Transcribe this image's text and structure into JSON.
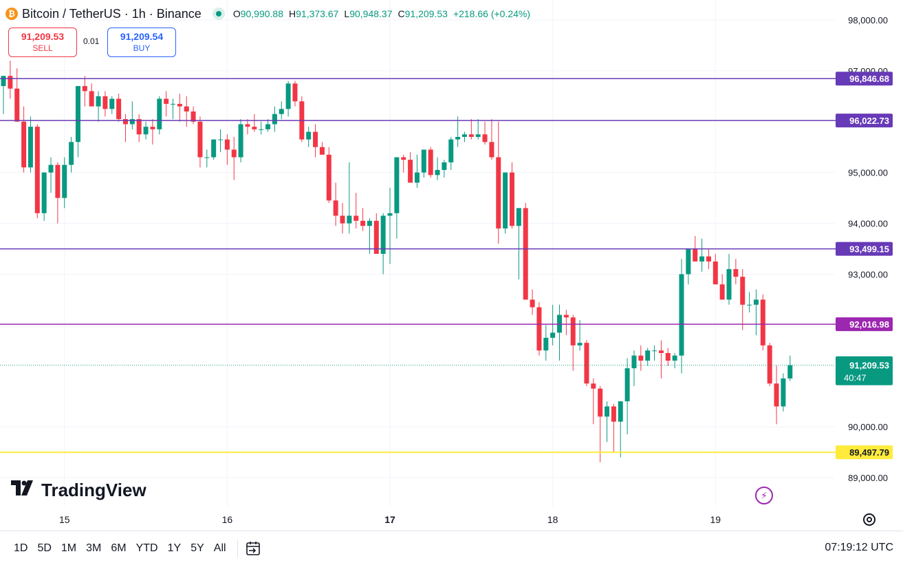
{
  "header": {
    "symbol_title": "Bitcoin / TetherUS · 1h · Binance",
    "ohlc": [
      {
        "key": "O",
        "value": "90,990.88"
      },
      {
        "key": "H",
        "value": "91,373.67"
      },
      {
        "key": "L",
        "value": "90,948.37"
      },
      {
        "key": "C",
        "value": "91,209.53"
      }
    ],
    "change": "+218.66 (+0.24%)",
    "status_color": "#089981"
  },
  "trade": {
    "sell_price": "91,209.53",
    "sell_label": "SELL",
    "spread": "0.01",
    "buy_price": "91,209.54",
    "buy_label": "BUY"
  },
  "logo_text": "TradingView",
  "bottom_bar": {
    "ranges": [
      "1D",
      "5D",
      "1M",
      "3M",
      "6M",
      "YTD",
      "1Y",
      "5Y",
      "All"
    ],
    "clock": "07:19:12 UTC"
  },
  "chart_data": {
    "type": "candlestick",
    "ylim": [
      88500,
      98200
    ],
    "y_ticks": [
      {
        "value": 98000,
        "label": "98,000.00"
      },
      {
        "value": 97000,
        "label": "97,000.00"
      },
      {
        "value": 95000,
        "label": "95,000.00"
      },
      {
        "value": 94000,
        "label": "94,000.00"
      },
      {
        "value": 93000,
        "label": "93,000.00"
      },
      {
        "value": 90000,
        "label": "90,000.00"
      },
      {
        "value": 89000,
        "label": "89,000.00"
      }
    ],
    "x_ticks": [
      {
        "index": 9,
        "label": "15",
        "bold": false
      },
      {
        "index": 33,
        "label": "16",
        "bold": false
      },
      {
        "index": 57,
        "label": "17",
        "bold": true
      },
      {
        "index": 81,
        "label": "18",
        "bold": false
      },
      {
        "index": 105,
        "label": "19",
        "bold": false
      }
    ],
    "horizontal_lines": [
      {
        "value": 96846.68,
        "label": "96,846.68",
        "color": "#673ab7"
      },
      {
        "value": 96022.73,
        "label": "96,022.73",
        "color": "#673ab7"
      },
      {
        "value": 93499.15,
        "label": "93,499.15",
        "color": "#673ab7"
      },
      {
        "value": 92016.98,
        "label": "92,016.98",
        "color": "#9c27b0"
      },
      {
        "value": 89497.79,
        "label": "89,497.79",
        "color": "#ffeb3b"
      }
    ],
    "last_price": {
      "value": 91209.53,
      "label": "91,209.53",
      "countdown": "40:47",
      "color": "#089981"
    },
    "colors": {
      "up": "#089981",
      "down": "#f23645"
    },
    "candles": [
      [
        96700,
        96900,
        96150,
        96900
      ],
      [
        96900,
        97200,
        96450,
        96650
      ],
      [
        96650,
        97050,
        96000,
        96000
      ],
      [
        96000,
        96300,
        95000,
        95100
      ],
      [
        95100,
        96100,
        95000,
        95900
      ],
      [
        95900,
        95950,
        94100,
        94200
      ],
      [
        94200,
        95000,
        94050,
        95000
      ],
      [
        95000,
        95300,
        94600,
        95150
      ],
      [
        95150,
        95200,
        94000,
        94500
      ],
      [
        94500,
        95300,
        94300,
        95150
      ],
      [
        95150,
        95700,
        95000,
        95600
      ],
      [
        95600,
        96700,
        95300,
        96700
      ],
      [
        96700,
        96900,
        96300,
        96600
      ],
      [
        96600,
        96750,
        96300,
        96300
      ],
      [
        96300,
        96600,
        96000,
        96500
      ],
      [
        96500,
        96600,
        96100,
        96250
      ],
      [
        96250,
        96500,
        96150,
        96450
      ],
      [
        96450,
        96550,
        96000,
        96050
      ],
      [
        96050,
        96150,
        95600,
        95950
      ],
      [
        95950,
        96400,
        95850,
        96050
      ],
      [
        96050,
        96150,
        95600,
        95750
      ],
      [
        95750,
        96000,
        95650,
        95900
      ],
      [
        95900,
        96050,
        95550,
        95850
      ],
      [
        95850,
        96500,
        95750,
        96450
      ],
      [
        96450,
        96600,
        96100,
        96350
      ],
      [
        96350,
        96450,
        96050,
        96350
      ],
      [
        96350,
        96550,
        96000,
        96300
      ],
      [
        96300,
        96500,
        95900,
        96200
      ],
      [
        96200,
        96300,
        95950,
        96000
      ],
      [
        96000,
        96100,
        95100,
        95300
      ],
      [
        95300,
        95450,
        95100,
        95300
      ],
      [
        95300,
        95650,
        95250,
        95650
      ],
      [
        95650,
        95850,
        95400,
        95650
      ],
      [
        95650,
        95750,
        95150,
        95450
      ],
      [
        95450,
        95700,
        94850,
        95300
      ],
      [
        95300,
        96050,
        95200,
        95950
      ],
      [
        95950,
        96050,
        95750,
        95900
      ],
      [
        95900,
        96150,
        95800,
        95850
      ],
      [
        95850,
        96000,
        95750,
        95850
      ],
      [
        95850,
        96050,
        95800,
        95950
      ],
      [
        95950,
        96300,
        95800,
        96150
      ],
      [
        96150,
        96400,
        96050,
        96250
      ],
      [
        96250,
        96800,
        96100,
        96750
      ],
      [
        96750,
        96800,
        96300,
        96400
      ],
      [
        96400,
        96500,
        95600,
        95650
      ],
      [
        95650,
        95900,
        95500,
        95800
      ],
      [
        95800,
        95950,
        95300,
        95500
      ],
      [
        95500,
        95600,
        95400,
        95350
      ],
      [
        95350,
        95500,
        94400,
        94450
      ],
      [
        94450,
        94800,
        93950,
        94150
      ],
      [
        94150,
        94400,
        93800,
        94000
      ],
      [
        94000,
        95200,
        93800,
        94150
      ],
      [
        94150,
        94600,
        93900,
        94050
      ],
      [
        94050,
        94300,
        93850,
        93950
      ],
      [
        93950,
        94100,
        93400,
        94050
      ],
      [
        94050,
        94200,
        93400,
        93400
      ],
      [
        93400,
        94200,
        93000,
        94150
      ],
      [
        94150,
        94700,
        93200,
        94200
      ],
      [
        94200,
        95300,
        93700,
        95300
      ],
      [
        95300,
        95350,
        95000,
        95250
      ],
      [
        95250,
        95400,
        94800,
        94800
      ],
      [
        94800,
        95350,
        94700,
        95000
      ],
      [
        95000,
        95450,
        94900,
        95450
      ],
      [
        95450,
        95500,
        94900,
        94950
      ],
      [
        94950,
        95300,
        94850,
        95050
      ],
      [
        95050,
        95250,
        94900,
        95200
      ],
      [
        95200,
        95700,
        95050,
        95650
      ],
      [
        95650,
        96100,
        95500,
        95700
      ],
      [
        95700,
        95800,
        95600,
        95750
      ],
      [
        95750,
        96050,
        95650,
        95700
      ],
      [
        95700,
        96050,
        95650,
        95750
      ],
      [
        95750,
        96000,
        95550,
        95600
      ],
      [
        95600,
        96050,
        95250,
        95300
      ],
      [
        95300,
        96000,
        93600,
        93900
      ],
      [
        93900,
        95000,
        93800,
        95000
      ],
      [
        95000,
        95200,
        93900,
        93950
      ],
      [
        93950,
        94300,
        92900,
        94300
      ],
      [
        94300,
        94400,
        92500,
        92500
      ],
      [
        92500,
        92700,
        92200,
        92350
      ],
      [
        92350,
        92450,
        91400,
        91500
      ],
      [
        91500,
        92000,
        91300,
        91750
      ],
      [
        91750,
        92400,
        91600,
        91850
      ],
      [
        91850,
        92400,
        91300,
        92200
      ],
      [
        92200,
        92300,
        91800,
        92150
      ],
      [
        92150,
        92200,
        91100,
        91600
      ],
      [
        91600,
        92100,
        91500,
        91650
      ],
      [
        91650,
        91700,
        90800,
        90850
      ],
      [
        90850,
        90950,
        90050,
        90750
      ],
      [
        90750,
        90800,
        89300,
        90200
      ],
      [
        90200,
        90500,
        89700,
        90400
      ],
      [
        90400,
        90450,
        89500,
        90100
      ],
      [
        90100,
        90500,
        89400,
        90500
      ],
      [
        90500,
        91350,
        89850,
        91150
      ],
      [
        91150,
        91500,
        90800,
        91400
      ],
      [
        91400,
        91600,
        91100,
        91300
      ],
      [
        91300,
        91550,
        91200,
        91500
      ],
      [
        91500,
        91600,
        91300,
        91500
      ],
      [
        91500,
        91700,
        90950,
        91450
      ],
      [
        91450,
        91550,
        91200,
        91300
      ],
      [
        91300,
        91450,
        91150,
        91400
      ],
      [
        91400,
        93300,
        91050,
        93000
      ],
      [
        93000,
        93500,
        92800,
        93500
      ],
      [
        93500,
        93750,
        93250,
        93250
      ],
      [
        93250,
        93700,
        93050,
        93350
      ],
      [
        93350,
        93500,
        93100,
        93250
      ],
      [
        93250,
        93400,
        92800,
        92800
      ],
      [
        92800,
        93000,
        92500,
        92500
      ],
      [
        92500,
        93400,
        92400,
        93100
      ],
      [
        93100,
        93300,
        92800,
        92950
      ],
      [
        92950,
        93100,
        91900,
        92400
      ],
      [
        92400,
        92650,
        92250,
        92400
      ],
      [
        92400,
        92700,
        91800,
        92500
      ],
      [
        92500,
        92600,
        91500,
        91600
      ],
      [
        91600,
        91650,
        90800,
        90850
      ],
      [
        90850,
        91200,
        90050,
        90400
      ],
      [
        90400,
        91050,
        90300,
        90950
      ],
      [
        90950,
        91400,
        90900,
        91210
      ]
    ]
  }
}
